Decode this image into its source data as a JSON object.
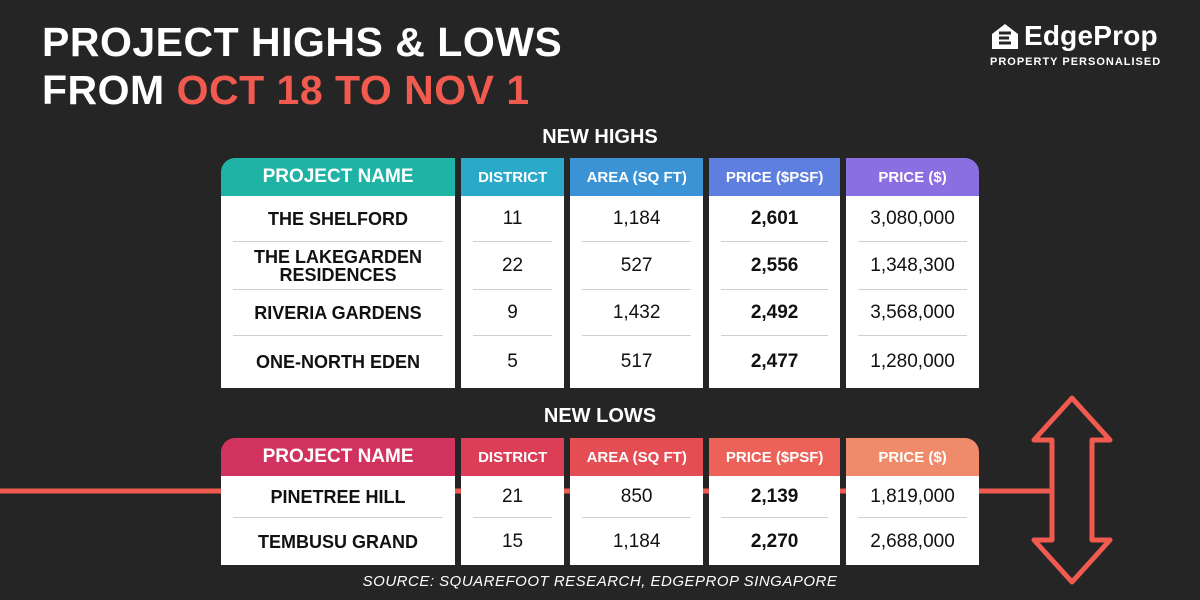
{
  "headline": {
    "line1": "PROJECT HIGHS & LOWS",
    "line2_prefix": "FROM ",
    "line2_accent": "OCT 18 TO NOV 1"
  },
  "logo": {
    "name": "EdgeProp",
    "tagline": "PROPERTY PERSONALISED"
  },
  "colors": {
    "accent": "#f05a4f",
    "background": "#252525",
    "highs_header": [
      "#1fb3a5",
      "#2aa9c9",
      "#3b93d6",
      "#5f7fe0",
      "#8a6fe0"
    ],
    "lows_header": [
      "#d1325e",
      "#dc3e58",
      "#e54d55",
      "#ec6158",
      "#ef8a6a"
    ]
  },
  "columns": [
    "PROJECT NAME",
    "DISTRICT",
    "AREA (SQ FT)",
    "PRICE ($PSF)",
    "PRICE ($)"
  ],
  "highs": {
    "label": "NEW HIGHS",
    "rows": [
      {
        "name": "THE SHELFORD",
        "district": "11",
        "area": "1,184",
        "psf": "2,601",
        "price": "3,080,000"
      },
      {
        "name": "THE LAKEGARDEN RESIDENCES",
        "district": "22",
        "area": "527",
        "psf": "2,556",
        "price": "1,348,300"
      },
      {
        "name": "RIVERIA GARDENS",
        "district": "9",
        "area": "1,432",
        "psf": "2,492",
        "price": "3,568,000"
      },
      {
        "name": "ONE-NORTH EDEN",
        "district": "5",
        "area": "517",
        "psf": "2,477",
        "price": "1,280,000"
      }
    ]
  },
  "lows": {
    "label": "NEW LOWS",
    "rows": [
      {
        "name": "PINETREE HILL",
        "district": "21",
        "area": "850",
        "psf": "2,139",
        "price": "1,819,000"
      },
      {
        "name": "TEMBUSU GRAND",
        "district": "15",
        "area": "1,184",
        "psf": "2,270",
        "price": "2,688,000"
      }
    ]
  },
  "source": "SOURCE: SQUAREFOOT RESEARCH, EDGEPROP SINGAPORE"
}
